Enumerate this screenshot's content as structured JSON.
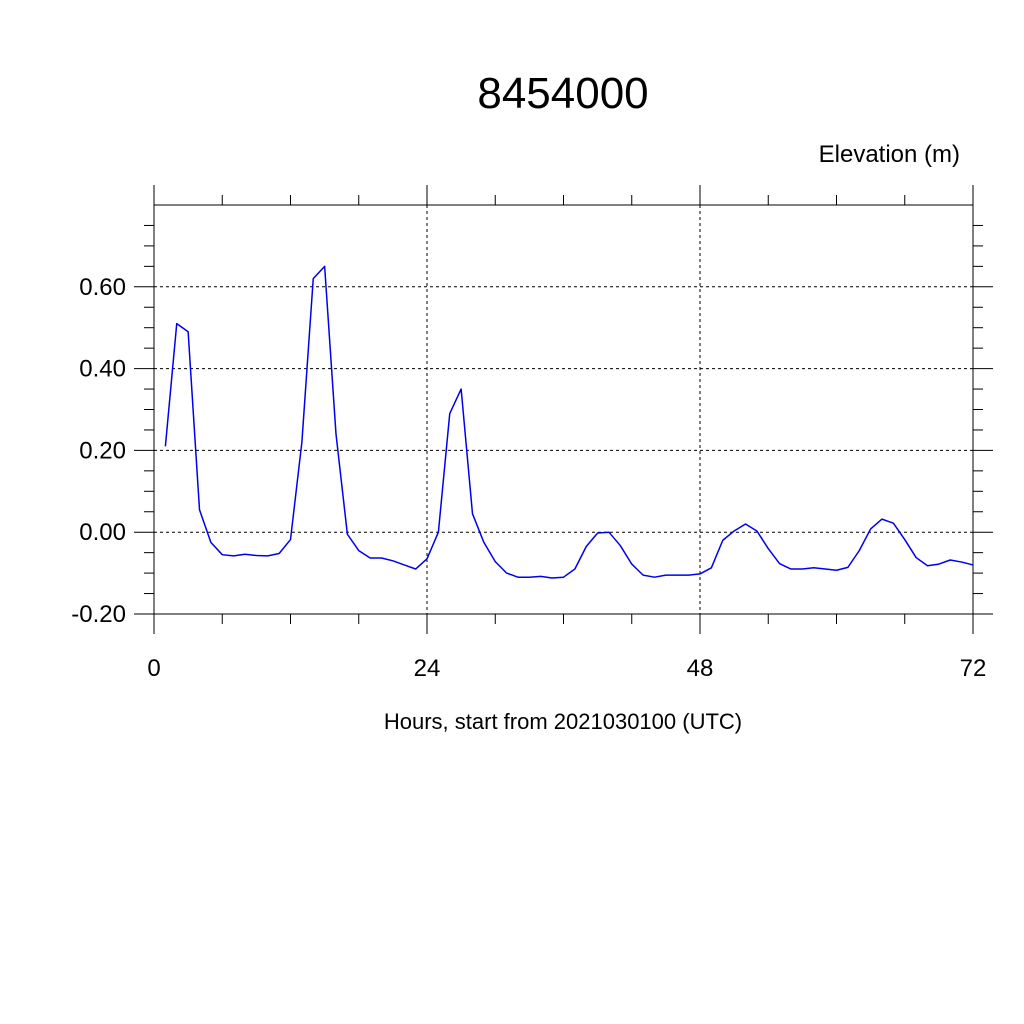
{
  "chart_data": {
    "type": "line",
    "title": "8454000",
    "ylabel": "Elevation (m)",
    "xlabel": "Hours, start from 2021030100 (UTC)",
    "xlim": [
      0,
      72
    ],
    "ylim": [
      -0.2,
      0.8
    ],
    "x_ticks": [
      0,
      24,
      48,
      72
    ],
    "x_tick_labels": [
      "0",
      "24",
      "48",
      "72"
    ],
    "y_ticks": [
      -0.2,
      0.0,
      0.2,
      0.4,
      0.6
    ],
    "y_tick_labels": [
      "-0.20",
      "0.00",
      "0.20",
      "0.40",
      "0.60"
    ],
    "grid": true,
    "series": [
      {
        "color": "#0000ee",
        "x": [
          1,
          2,
          3,
          4,
          5,
          6,
          7,
          8,
          9,
          10,
          11,
          12,
          13,
          14,
          15,
          16,
          17,
          18,
          19,
          20,
          21,
          22,
          23,
          24,
          25,
          26,
          27,
          28,
          29,
          30,
          31,
          32,
          33,
          34,
          35,
          36,
          37,
          38,
          39,
          40,
          41,
          42,
          43,
          44,
          45,
          46,
          47,
          48,
          49,
          50,
          51,
          52,
          53,
          54,
          55,
          56,
          57,
          58,
          59,
          60,
          61,
          62,
          63,
          64,
          65,
          66,
          67,
          68,
          69,
          70,
          71,
          72
        ],
        "y": [
          0.21,
          0.51,
          0.49,
          0.055,
          -0.025,
          -0.055,
          -0.058,
          -0.054,
          -0.057,
          -0.058,
          -0.052,
          -0.018,
          0.22,
          0.62,
          0.65,
          0.24,
          -0.005,
          -0.045,
          -0.063,
          -0.063,
          -0.07,
          -0.08,
          -0.09,
          -0.065,
          0.0,
          0.29,
          0.35,
          0.045,
          -0.025,
          -0.072,
          -0.1,
          -0.11,
          -0.11,
          -0.108,
          -0.112,
          -0.11,
          -0.09,
          -0.035,
          -0.002,
          0.0,
          -0.033,
          -0.078,
          -0.105,
          -0.11,
          -0.105,
          -0.105,
          -0.105,
          -0.102,
          -0.087,
          -0.02,
          0.003,
          0.02,
          0.003,
          -0.04,
          -0.077,
          -0.09,
          -0.09,
          -0.087,
          -0.09,
          -0.093,
          -0.086,
          -0.045,
          0.008,
          0.032,
          0.022,
          -0.018,
          -0.062,
          -0.082,
          -0.078,
          -0.068,
          -0.073,
          -0.08
        ]
      }
    ]
  }
}
